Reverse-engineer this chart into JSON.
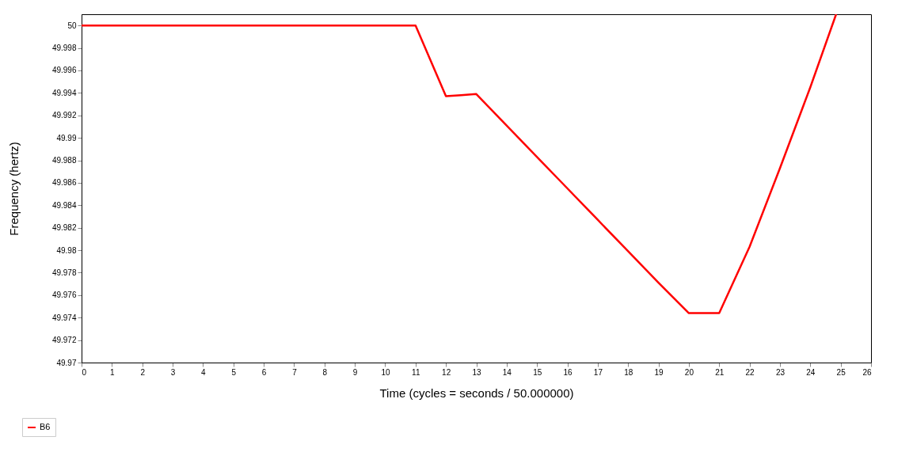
{
  "chart_data": {
    "type": "line",
    "xlabel": "Time (cycles = seconds / 50.000000)",
    "ylabel": "Frequency (hertz)",
    "x": [
      0,
      11,
      12,
      12.5,
      13,
      14,
      15,
      16,
      17,
      18,
      19,
      20,
      21,
      22,
      23,
      24,
      24.85
    ],
    "series": [
      {
        "name": "B6",
        "color": "#ff0000",
        "values": [
          50,
          50,
          49.9937,
          49.9938,
          49.9939,
          49.9911,
          49.9883,
          49.9855,
          49.9827,
          49.9799,
          49.9771,
          49.9744,
          49.9744,
          49.9803,
          49.9873,
          49.9945,
          50.001
        ]
      }
    ],
    "xlim": [
      0,
      26
    ],
    "xticks": [
      0,
      1,
      2,
      3,
      4,
      5,
      6,
      7,
      8,
      9,
      10,
      11,
      12,
      13,
      14,
      15,
      16,
      17,
      18,
      19,
      20,
      21,
      22,
      23,
      24,
      25,
      26
    ],
    "ylim": [
      49.97,
      50.001
    ],
    "yticks": [
      49.97,
      49.972,
      49.974,
      49.976,
      49.978,
      49.98,
      49.982,
      49.984,
      49.986,
      49.988,
      49.99,
      49.992,
      49.994,
      49.996,
      49.998,
      50
    ],
    "grid": false,
    "legend": "bottom left",
    "marker": "none",
    "line_style": "solid"
  }
}
